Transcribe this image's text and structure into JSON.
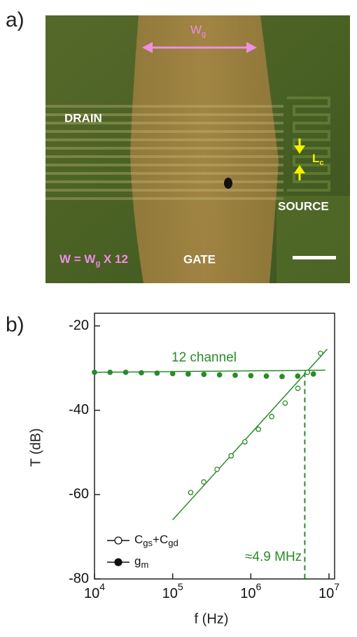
{
  "panel_a": {
    "label": "a)",
    "wg": {
      "text": "W",
      "sub": "g"
    },
    "drain": "DRAIN",
    "lc": {
      "text": "L",
      "sub": "c"
    },
    "source": "SOURCE",
    "w_eq": {
      "text": "W = W",
      "sub": "g",
      "rest": " X 12"
    },
    "gate": "GATE"
  },
  "chart_data": {
    "type": "scatter",
    "panel_label": "b)",
    "xlabel": "f (Hz)",
    "ylabel": "T (dB)",
    "xscale": "log",
    "xlim": [
      10000,
      10000000
    ],
    "ylim": [
      -80,
      -17
    ],
    "xticks": [
      {
        "value": 10000,
        "label": "10",
        "exp": "4"
      },
      {
        "value": 100000,
        "label": "10",
        "exp": "5"
      },
      {
        "value": 1000000,
        "label": "10",
        "exp": "6"
      },
      {
        "value": 10000000,
        "label": "10",
        "exp": "7"
      }
    ],
    "yticks": [
      -20,
      -40,
      -60,
      -80
    ],
    "color": "#2a8a2a",
    "series": [
      {
        "name_parts": [
          {
            "text": "C"
          },
          {
            "sub": "gs"
          },
          {
            "text": "+C"
          },
          {
            "sub": "gd"
          }
        ],
        "marker": "open",
        "x": [
          170000,
          250000,
          370000,
          560000,
          840000,
          1250000,
          1850000,
          2750000,
          4000000,
          5300000,
          7800000
        ],
        "values": [
          -59.5,
          -57,
          -54,
          -50.8,
          -47.5,
          -44.5,
          -41.5,
          -38.3,
          -34.8,
          -31,
          -26.5
        ]
      },
      {
        "name_parts": [
          {
            "text": "g"
          },
          {
            "sub": "m"
          }
        ],
        "marker": "filled",
        "x": [
          10000,
          15800,
          25100,
          39800,
          63100,
          100000,
          158000,
          251000,
          398000,
          631000,
          1000000,
          1580000,
          2510000,
          3980000,
          6310000
        ],
        "values": [
          -31,
          -31,
          -31,
          -31.1,
          -31.2,
          -31.3,
          -31.4,
          -31.5,
          -31.6,
          -31.7,
          -31.8,
          -31.9,
          -32,
          -31.9,
          -31.4
        ]
      }
    ],
    "fits": [
      {
        "x": [
          100000,
          9500000
        ],
        "values": [
          -66,
          -25.5
        ]
      },
      {
        "x": [
          10000,
          9000000
        ],
        "values": [
          -31,
          -30.5
        ]
      }
    ],
    "annotations": [
      {
        "text": "12 channel"
      },
      {
        "text": "≈4.9 MHz",
        "x": 4900000
      }
    ]
  }
}
